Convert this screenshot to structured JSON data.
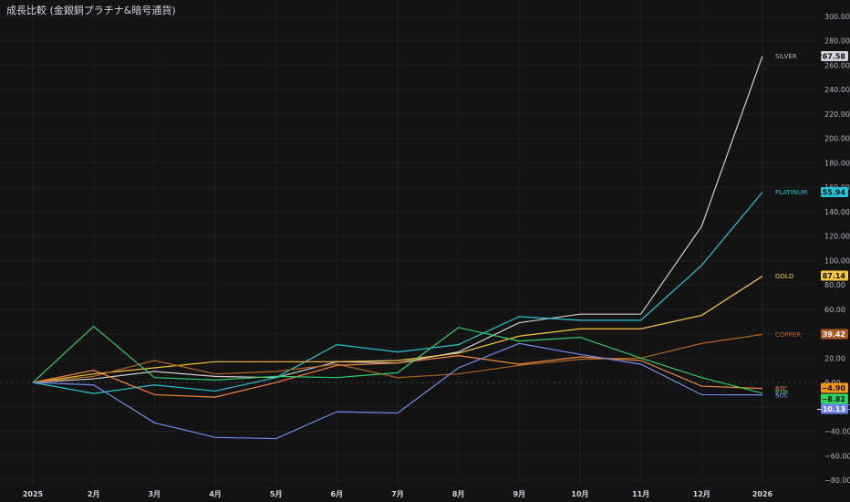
{
  "title": "成長比較 (金銀銅プラチナ&暗号通貨)",
  "chart_data": {
    "type": "line",
    "x": [
      "2025",
      "2月",
      "3月",
      "4月",
      "5月",
      "6月",
      "7月",
      "8月",
      "9月",
      "10月",
      "11月",
      "12月",
      "2026"
    ],
    "y_ticks": [
      "300.00",
      "280.00",
      "260.00",
      "240.00",
      "220.00",
      "200.00",
      "180.00",
      "160.00",
      "140.00",
      "120.00",
      "100.00",
      "80.00",
      "60.00",
      "40.00",
      "20.00",
      "0.00",
      "−20.00",
      "−40.00",
      "−60.00",
      "−80.00"
    ],
    "ylim": [
      -80,
      300
    ],
    "grid": true,
    "series": [
      {
        "name": "SILVER",
        "color": "#cfcfcf",
        "label_color": "#b2b5be",
        "value_bg": "#d1d4dc",
        "value_fg": "#131313",
        "value": "267.58",
        "values": [
          0,
          3,
          9,
          5,
          4,
          17,
          16,
          25,
          49,
          56,
          56,
          128,
          267.58
        ]
      },
      {
        "name": "PLATINUM",
        "color": "#26c6da",
        "label_color": "#26c6da",
        "value_bg": "#26c6da",
        "value_fg": "#131313",
        "value": "155.94",
        "values": [
          0,
          -9,
          -2,
          -7,
          4,
          31,
          25,
          31,
          54,
          51,
          51,
          96,
          155.94
        ]
      },
      {
        "name": "GOLD",
        "color": "#f5c542",
        "label_color": "#f5c542",
        "value_bg": "#f5c542",
        "value_fg": "#131313",
        "value": "87.14",
        "values": [
          0,
          7,
          12,
          17,
          17,
          17,
          18,
          24,
          38,
          44,
          44,
          55,
          87.14
        ]
      },
      {
        "name": "COPPER",
        "color": "#b5651d",
        "label_color": "#c0652a",
        "value_bg": "#a85a22",
        "value_fg": "#ffffff",
        "value": "39.42",
        "values": [
          0,
          5,
          18,
          7,
          9,
          15,
          4,
          7,
          14,
          19,
          20,
          32,
          39.42
        ]
      },
      {
        "name": "BTC",
        "color": "#f0883e",
        "label_color": "#f0883e",
        "value_bg": "#f7931a",
        "value_fg": "#131313",
        "value": "−4.90",
        "values": [
          0,
          10,
          -10,
          -12,
          0,
          14,
          16,
          22,
          15,
          21,
          18,
          -3,
          -4.9
        ]
      },
      {
        "name": "ETH",
        "color": "#33cc66",
        "label_color": "#33cc66",
        "value_bg": "#26d962",
        "value_fg": "#131313",
        "value": "−8.82",
        "values": [
          0,
          46,
          4,
          2,
          5,
          4,
          8,
          45,
          34,
          37,
          20,
          4,
          -8.82
        ]
      },
      {
        "name": "SOL",
        "color": "#6f8df0",
        "label_color": "#6f8df0",
        "value_bg": "#6a7fe8",
        "value_fg": "#ffffff",
        "value": "−10.13",
        "values": [
          0,
          -2,
          -33,
          -45,
          -46,
          -24,
          -25,
          12,
          32,
          23,
          15,
          -10,
          -10.13
        ]
      }
    ]
  }
}
